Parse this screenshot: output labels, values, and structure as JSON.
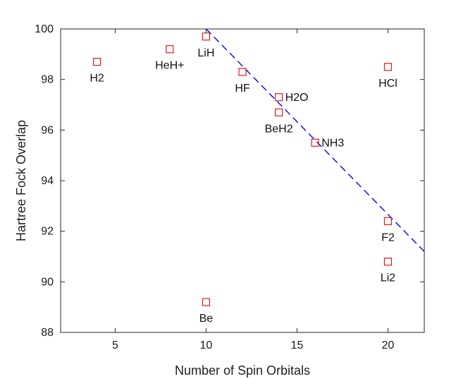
{
  "chart_data": {
    "type": "scatter",
    "title": "",
    "xlabel": "Number of Spin Orbitals",
    "ylabel": "Hartree Fock Overlap",
    "xlim": [
      2,
      22
    ],
    "ylim": [
      88,
      100
    ],
    "xticks": [
      5,
      10,
      15,
      20
    ],
    "yticks": [
      88,
      90,
      92,
      94,
      96,
      98,
      100
    ],
    "grid": false,
    "legend": "none",
    "colors": {
      "marker": "#e31a1c",
      "fit_line": "#0000ff",
      "axis": "#262626"
    },
    "points": [
      {
        "label": "H2",
        "x": 4,
        "y": 98.7,
        "label_pos": "below"
      },
      {
        "label": "HeH+",
        "x": 8,
        "y": 99.2,
        "label_pos": "below"
      },
      {
        "label": "LiH",
        "x": 10,
        "y": 99.7,
        "label_pos": "below"
      },
      {
        "label": "Be",
        "x": 10,
        "y": 89.2,
        "label_pos": "below"
      },
      {
        "label": "HF",
        "x": 12,
        "y": 98.3,
        "label_pos": "below"
      },
      {
        "label": "H2O",
        "x": 14,
        "y": 97.3,
        "label_pos": "right"
      },
      {
        "label": "BeH2",
        "x": 14,
        "y": 96.7,
        "label_pos": "below"
      },
      {
        "label": "NH3",
        "x": 16,
        "y": 95.5,
        "label_pos": "right"
      },
      {
        "label": "HCl",
        "x": 20,
        "y": 98.5,
        "label_pos": "below"
      },
      {
        "label": "F2",
        "x": 20,
        "y": 92.4,
        "label_pos": "below"
      },
      {
        "label": "Li2",
        "x": 20,
        "y": 90.8,
        "label_pos": "below"
      }
    ],
    "fit_line": {
      "style": "dashed",
      "x": [
        10,
        22
      ],
      "y": [
        100,
        91.2
      ]
    }
  }
}
